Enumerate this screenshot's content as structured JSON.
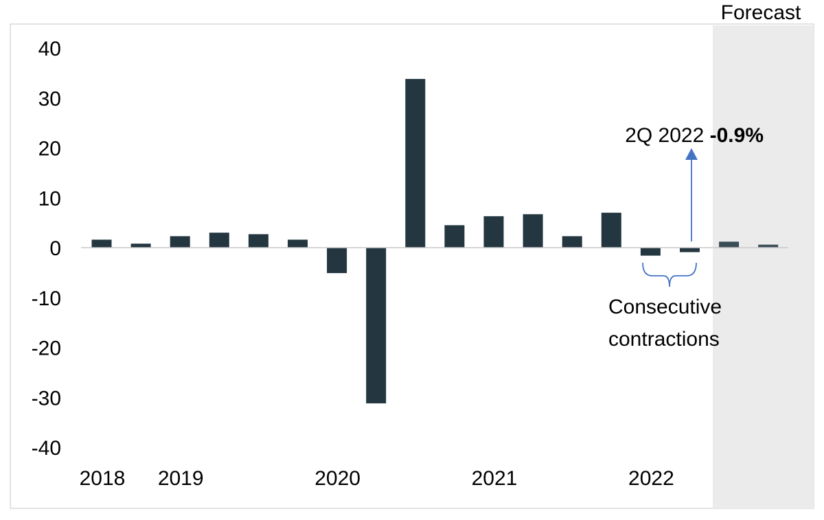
{
  "colors": {
    "bar": "#243640",
    "forecast_bar": "#3a4d57",
    "forecast_band": "#ebebeb",
    "axis": "#c9c9c9",
    "frame": "#d9d9d9",
    "annotation_blue": "#4472c4"
  },
  "annotations": {
    "forecast": "Forecast",
    "callout_prefix": "2Q 2022 ",
    "callout_value": "-0.9%",
    "bracket_line1": "Consecutive",
    "bracket_line2": "contractions"
  },
  "chart_data": {
    "type": "bar",
    "title": "",
    "xlabel": "",
    "ylabel": "",
    "ylim": [
      -40,
      40
    ],
    "yticks": [
      40,
      30,
      20,
      10,
      0,
      -10,
      -20,
      -30,
      -40
    ],
    "year_labels": [
      {
        "label": "2018",
        "quarter_index": 0
      },
      {
        "label": "2019",
        "quarter_index": 2
      },
      {
        "label": "2020",
        "quarter_index": 6
      },
      {
        "label": "2021",
        "quarter_index": 10
      },
      {
        "label": "2022",
        "quarter_index": 14
      }
    ],
    "forecast_start_index": 16,
    "values": [
      1.6,
      0.8,
      2.3,
      3.0,
      2.7,
      1.6,
      -5.1,
      -31.2,
      33.8,
      4.5,
      6.3,
      6.7,
      2.3,
      7.0,
      -1.6,
      -0.9,
      1.2,
      0.6
    ],
    "grid": false,
    "legend": "none"
  }
}
